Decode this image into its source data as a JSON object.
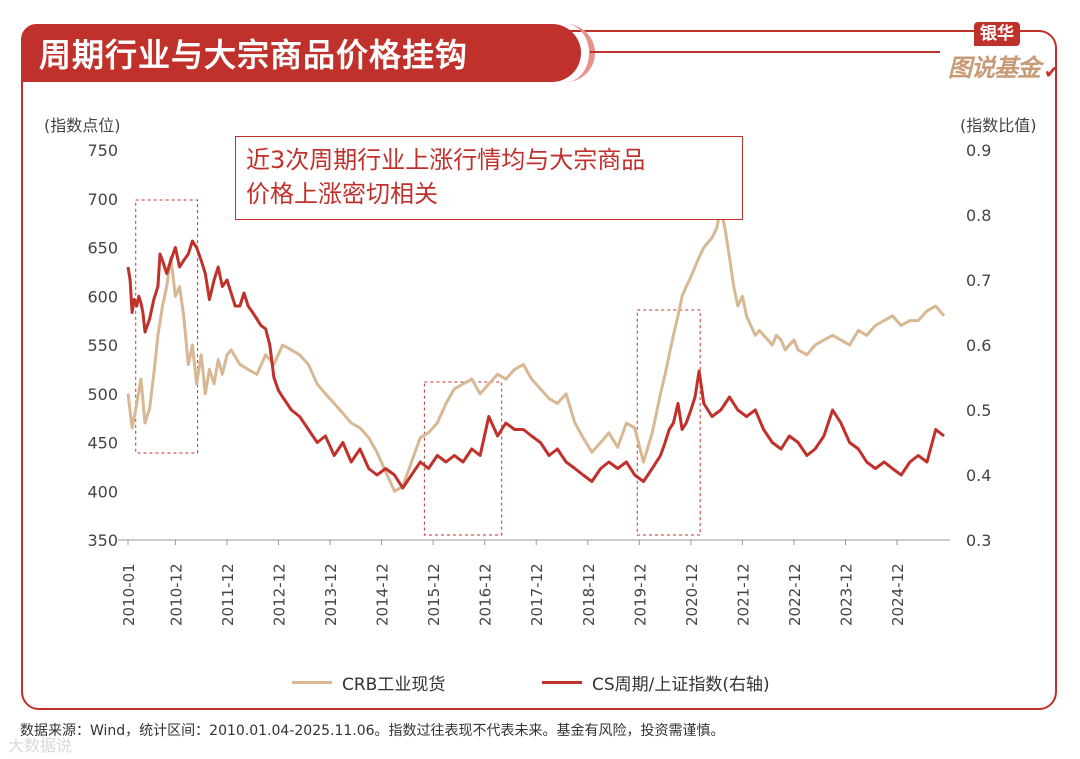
{
  "header": {
    "title": "周期行业与大宗商品价格挂钩",
    "brand_top": "银华",
    "brand_bottom": "图说基金"
  },
  "annotation": {
    "line1": "近3次周期行业上涨行情均与大宗商品",
    "line2": "价格上涨密切相关"
  },
  "footnote": "数据来源：Wind，统计区间：2010.01.04-2025.11.06。指数过往表现不代表未来。基金有风险，投资需谨慎。",
  "watermark": "大数据说",
  "colors": {
    "accent": "#c0312b",
    "crb": "#d8b894",
    "cs": "#c0312b"
  },
  "chart_data": {
    "type": "line",
    "ylabel_left": "(指数点位)",
    "ylabel_right": "(指数比值)",
    "ylim_left": [
      350,
      750
    ],
    "ylim_right": [
      0.3,
      0.9
    ],
    "yticks_left": [
      350,
      400,
      450,
      500,
      550,
      600,
      650,
      700,
      750
    ],
    "yticks_right": [
      0.3,
      0.4,
      0.5,
      0.6,
      0.7,
      0.8,
      0.9
    ],
    "x_range": [
      2010.0,
      2025.85
    ],
    "xticks": [
      "2010-01",
      "2010-12",
      "2011-12",
      "2012-12",
      "2013-12",
      "2014-12",
      "2015-12",
      "2016-12",
      "2017-12",
      "2018-12",
      "2019-12",
      "2020-12",
      "2021-12",
      "2022-12",
      "2023-12",
      "2024-12"
    ],
    "xtick_pos": [
      2010.0,
      2010.92,
      2011.92,
      2012.92,
      2013.92,
      2014.92,
      2015.92,
      2016.92,
      2017.92,
      2018.92,
      2019.92,
      2020.92,
      2021.92,
      2022.92,
      2023.92,
      2024.92
    ],
    "highlight_periods": [
      [
        2010.15,
        2011.35
      ],
      [
        2015.75,
        2017.25
      ],
      [
        2019.88,
        2021.1
      ]
    ],
    "series": [
      {
        "name": "CRB工业现货",
        "axis": "left",
        "x": [
          2010.0,
          2010.08,
          2010.17,
          2010.25,
          2010.33,
          2010.42,
          2010.5,
          2010.58,
          2010.67,
          2010.75,
          2010.83,
          2010.92,
          2011.0,
          2011.08,
          2011.17,
          2011.25,
          2011.33,
          2011.42,
          2011.5,
          2011.58,
          2011.67,
          2011.75,
          2011.83,
          2011.92,
          2012.0,
          2012.17,
          2012.33,
          2012.5,
          2012.67,
          2012.83,
          2013.0,
          2013.17,
          2013.33,
          2013.5,
          2013.67,
          2013.83,
          2014.0,
          2014.17,
          2014.33,
          2014.5,
          2014.67,
          2014.83,
          2015.0,
          2015.17,
          2015.33,
          2015.5,
          2015.67,
          2015.83,
          2016.0,
          2016.17,
          2016.33,
          2016.5,
          2016.67,
          2016.83,
          2017.0,
          2017.17,
          2017.33,
          2017.5,
          2017.67,
          2017.83,
          2018.0,
          2018.17,
          2018.33,
          2018.5,
          2018.67,
          2018.83,
          2019.0,
          2019.17,
          2019.33,
          2019.5,
          2019.67,
          2019.83,
          2020.0,
          2020.17,
          2020.33,
          2020.42,
          2020.5,
          2020.58,
          2020.67,
          2020.75,
          2020.83,
          2020.92,
          2021.0,
          2021.08,
          2021.17,
          2021.25,
          2021.33,
          2021.42,
          2021.5,
          2021.58,
          2021.67,
          2021.75,
          2021.83,
          2021.92,
          2022.0,
          2022.08,
          2022.17,
          2022.25,
          2022.33,
          2022.42,
          2022.5,
          2022.58,
          2022.67,
          2022.75,
          2022.83,
          2022.92,
          2023.0,
          2023.17,
          2023.33,
          2023.5,
          2023.67,
          2023.83,
          2024.0,
          2024.17,
          2024.33,
          2024.5,
          2024.67,
          2024.83,
          2025.0,
          2025.17,
          2025.33,
          2025.5,
          2025.67,
          2025.83
        ],
        "values": [
          500,
          465,
          490,
          515,
          470,
          485,
          520,
          560,
          590,
          610,
          640,
          600,
          610,
          580,
          530,
          550,
          510,
          540,
          500,
          525,
          510,
          535,
          520,
          540,
          545,
          530,
          525,
          520,
          540,
          530,
          550,
          545,
          540,
          530,
          510,
          500,
          490,
          480,
          470,
          465,
          455,
          440,
          420,
          400,
          405,
          430,
          455,
          460,
          470,
          490,
          505,
          510,
          515,
          500,
          510,
          520,
          515,
          525,
          530,
          515,
          505,
          495,
          490,
          500,
          470,
          455,
          440,
          450,
          460,
          445,
          470,
          465,
          430,
          460,
          500,
          520,
          540,
          560,
          580,
          600,
          610,
          620,
          630,
          640,
          650,
          655,
          660,
          670,
          690,
          670,
          640,
          610,
          590,
          600,
          580,
          570,
          560,
          565,
          560,
          555,
          550,
          560,
          555,
          545,
          550,
          555,
          545,
          540,
          550,
          555,
          560,
          555,
          550,
          565,
          560,
          570,
          575,
          580,
          570,
          575,
          575,
          585,
          590,
          580
        ]
      },
      {
        "name": "CS周期/上证指数(右轴)",
        "axis": "right",
        "x": [
          2010.0,
          2010.04,
          2010.08,
          2010.12,
          2010.17,
          2010.21,
          2010.25,
          2010.29,
          2010.33,
          2010.42,
          2010.5,
          2010.58,
          2010.62,
          2010.67,
          2010.75,
          2010.83,
          2010.92,
          2011.0,
          2011.08,
          2011.17,
          2011.25,
          2011.33,
          2011.42,
          2011.5,
          2011.58,
          2011.67,
          2011.75,
          2011.83,
          2011.92,
          2012.0,
          2012.08,
          2012.17,
          2012.25,
          2012.33,
          2012.42,
          2012.5,
          2012.58,
          2012.67,
          2012.75,
          2012.83,
          2012.92,
          2013.0,
          2013.17,
          2013.33,
          2013.5,
          2013.67,
          2013.83,
          2014.0,
          2014.17,
          2014.33,
          2014.5,
          2014.67,
          2014.83,
          2015.0,
          2015.17,
          2015.33,
          2015.5,
          2015.67,
          2015.83,
          2016.0,
          2016.17,
          2016.33,
          2016.5,
          2016.67,
          2016.83,
          2017.0,
          2017.17,
          2017.33,
          2017.5,
          2017.67,
          2017.83,
          2018.0,
          2018.17,
          2018.33,
          2018.5,
          2018.67,
          2018.83,
          2019.0,
          2019.17,
          2019.33,
          2019.5,
          2019.67,
          2019.83,
          2020.0,
          2020.17,
          2020.33,
          2020.42,
          2020.5,
          2020.58,
          2020.67,
          2020.75,
          2020.83,
          2020.92,
          2021.0,
          2021.08,
          2021.17,
          2021.33,
          2021.5,
          2021.67,
          2021.83,
          2022.0,
          2022.17,
          2022.33,
          2022.5,
          2022.67,
          2022.83,
          2023.0,
          2023.17,
          2023.33,
          2023.5,
          2023.67,
          2023.83,
          2024.0,
          2024.17,
          2024.33,
          2024.5,
          2024.67,
          2024.83,
          2025.0,
          2025.17,
          2025.33,
          2025.5,
          2025.67,
          2025.83
        ],
        "values": [
          0.72,
          0.7,
          0.65,
          0.67,
          0.66,
          0.675,
          0.665,
          0.65,
          0.62,
          0.64,
          0.67,
          0.69,
          0.74,
          0.73,
          0.71,
          0.73,
          0.75,
          0.72,
          0.73,
          0.74,
          0.76,
          0.75,
          0.73,
          0.71,
          0.67,
          0.7,
          0.72,
          0.69,
          0.7,
          0.68,
          0.66,
          0.66,
          0.68,
          0.66,
          0.65,
          0.64,
          0.63,
          0.625,
          0.6,
          0.55,
          0.53,
          0.52,
          0.5,
          0.49,
          0.47,
          0.45,
          0.46,
          0.43,
          0.45,
          0.42,
          0.44,
          0.41,
          0.4,
          0.41,
          0.4,
          0.38,
          0.4,
          0.42,
          0.41,
          0.43,
          0.42,
          0.43,
          0.42,
          0.44,
          0.43,
          0.49,
          0.46,
          0.48,
          0.47,
          0.47,
          0.46,
          0.45,
          0.43,
          0.44,
          0.42,
          0.41,
          0.4,
          0.39,
          0.41,
          0.42,
          0.41,
          0.42,
          0.4,
          0.39,
          0.41,
          0.43,
          0.45,
          0.47,
          0.48,
          0.51,
          0.47,
          0.48,
          0.5,
          0.52,
          0.56,
          0.51,
          0.49,
          0.5,
          0.52,
          0.5,
          0.49,
          0.5,
          0.47,
          0.45,
          0.44,
          0.46,
          0.45,
          0.43,
          0.44,
          0.46,
          0.5,
          0.48,
          0.45,
          0.44,
          0.42,
          0.41,
          0.42,
          0.41,
          0.4,
          0.42,
          0.43,
          0.42,
          0.47,
          0.46
        ]
      }
    ]
  }
}
